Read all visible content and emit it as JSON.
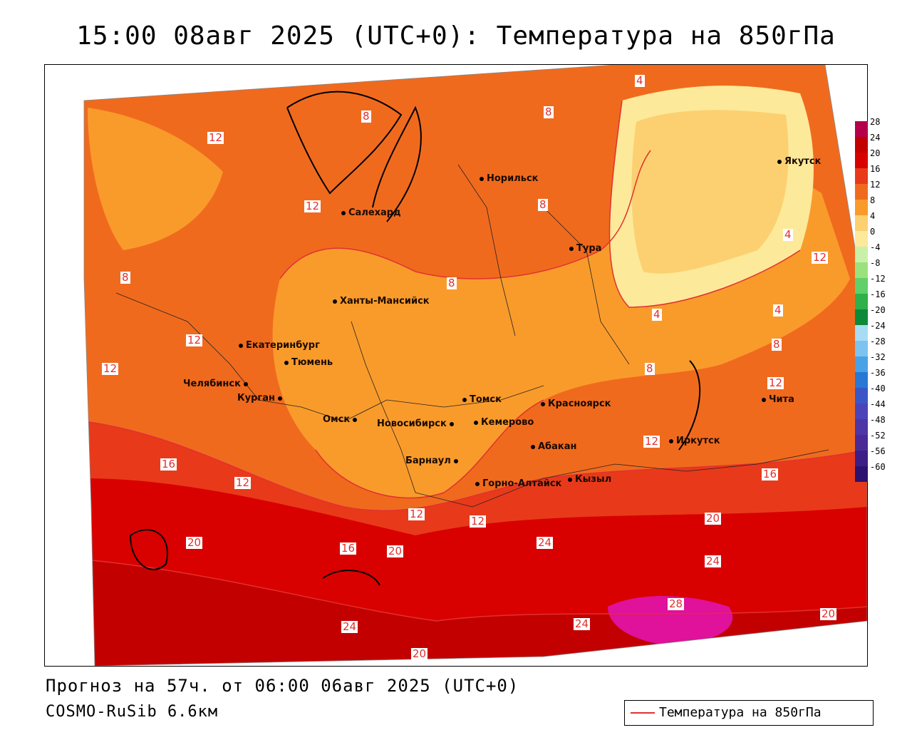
{
  "title": "15:00 08авг 2025 (UTC+0): Температура на 850гПа",
  "footer": {
    "forecast": "Прогноз на 57ч. от 06:00 06авг 2025 (UTC+0)",
    "model": "COSMO-RuSib 6.6км"
  },
  "legend": {
    "label": "Температура на 850гПа",
    "line_color": "#e23030"
  },
  "colorbar": {
    "labels": [
      "28",
      "24",
      "20",
      "16",
      "12",
      "8",
      "4",
      "0",
      "-4",
      "-8",
      "-12",
      "-16",
      "-20",
      "-24",
      "-28",
      "-32",
      "-36",
      "-40",
      "-44",
      "-48",
      "-52",
      "-56",
      "-60"
    ],
    "colors": [
      "#b5004a",
      "#c30000",
      "#d90000",
      "#e83a1a",
      "#f06a1e",
      "#f99b2b",
      "#fcd070",
      "#fde99a",
      "#c9f0a8",
      "#9be27f",
      "#5fd06a",
      "#2eb04a",
      "#0c8a3a",
      "#a8dcf5",
      "#7cc3ef",
      "#4aa2e6",
      "#2a78d5",
      "#3b57c7",
      "#4b44b8",
      "#4d36a6",
      "#4a2a96",
      "#3e1e86",
      "#2c126e"
    ]
  },
  "cities": [
    {
      "name": "Норильск"
    },
    {
      "name": "Салехард"
    },
    {
      "name": "Ханты-Мансийск"
    },
    {
      "name": "Тура"
    },
    {
      "name": "Якутск"
    },
    {
      "name": "Екатеринбург"
    },
    {
      "name": "Тюмень"
    },
    {
      "name": "Челябинск"
    },
    {
      "name": "Курган"
    },
    {
      "name": "Омск"
    },
    {
      "name": "Новосибирск"
    },
    {
      "name": "Томск"
    },
    {
      "name": "Кемерово"
    },
    {
      "name": "Красноярск"
    },
    {
      "name": "Барнаул"
    },
    {
      "name": "Абакан"
    },
    {
      "name": "Иркутск"
    },
    {
      "name": "Чита"
    },
    {
      "name": "Горно-Алтайск"
    },
    {
      "name": "Кызыл"
    }
  ],
  "isoline_labels": [
    "4",
    "8",
    "12",
    "16",
    "20",
    "24",
    "28"
  ]
}
